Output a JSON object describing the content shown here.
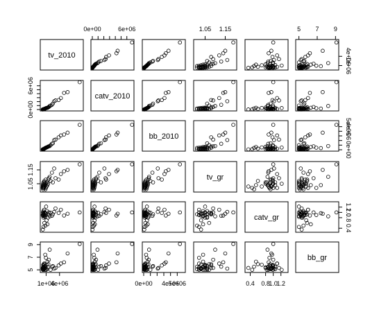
{
  "chart_data": {
    "type": "scatter",
    "variables": [
      {
        "name": "tv_2010",
        "range": [
          0,
          9000000
        ],
        "ticks": [
          {
            "value": 1000000,
            "label": "1e+06"
          },
          {
            "value": 4000000,
            "label": "4e+06"
          }
        ],
        "minor_ticks": []
      },
      {
        "name": "catv_2010",
        "range": [
          0,
          7000000
        ],
        "ticks": [
          {
            "value": 0,
            "label": "0e+00"
          },
          {
            "value": 6000000,
            "label": "6e+06"
          }
        ],
        "minor_ticks": [
          1000000,
          2000000,
          3000000,
          4000000,
          5000000
        ]
      },
      {
        "name": "bb_2010",
        "range": [
          0,
          6000000
        ],
        "ticks": [
          {
            "value": 0,
            "label": "0e+00"
          },
          {
            "value": 4000000,
            "label": "4e+06"
          },
          {
            "value": 5000000,
            "label": "5e+06"
          }
        ],
        "minor_ticks": [
          1000000,
          2000000,
          3000000
        ]
      },
      {
        "name": "tv_gr",
        "range": [
          1.0,
          1.2
        ],
        "ticks": [
          {
            "value": 1.05,
            "label": "1.05"
          },
          {
            "value": 1.15,
            "label": "1.15"
          }
        ],
        "minor_ticks": []
      },
      {
        "name": "catv_gr",
        "range": [
          0.3,
          1.35
        ],
        "ticks": [
          {
            "value": 0.4,
            "label": "0.4"
          },
          {
            "value": 0.8,
            "label": "0.8"
          },
          {
            "value": 1.0,
            "label": "1.0"
          },
          {
            "value": 1.2,
            "label": "1.2"
          }
        ],
        "minor_ticks": []
      },
      {
        "name": "bb_gr",
        "range": [
          4.8,
          9.2
        ],
        "ticks": [
          {
            "value": 5,
            "label": "5"
          },
          {
            "value": 7,
            "label": "7"
          },
          {
            "value": 9,
            "label": "9"
          }
        ],
        "minor_ticks": []
      }
    ],
    "observations": [
      [
        8500000,
        6900000,
        5400000,
        1.19,
        1.0,
        9.1
      ],
      [
        5800000,
        4400000,
        3700000,
        1.15,
        0.95,
        7.6
      ],
      [
        5000000,
        4200000,
        3300000,
        1.14,
        0.88,
        6.2
      ],
      [
        4300000,
        2900000,
        3100000,
        1.12,
        1.1,
        6.0
      ],
      [
        3800000,
        2400000,
        2700000,
        1.08,
        0.98,
        5.7
      ],
      [
        3100000,
        2300000,
        2200000,
        1.09,
        1.15,
        5.3
      ],
      [
        2800000,
        2100000,
        2100000,
        1.16,
        1.02,
        5.2
      ],
      [
        2500000,
        1500000,
        1400000,
        1.06,
        0.93,
        5.6
      ],
      [
        2300000,
        1200000,
        1300000,
        1.13,
        0.87,
        5.5
      ],
      [
        2000000,
        1000000,
        1000000,
        1.07,
        0.99,
        5.0
      ],
      [
        1800000,
        900000,
        800000,
        1.1,
        0.85,
        8.2
      ],
      [
        1600000,
        650000,
        750000,
        1.09,
        1.0,
        6.6
      ],
      [
        1500000,
        600000,
        700000,
        1.08,
        0.92,
        5.9
      ],
      [
        1400000,
        500000,
        650000,
        1.05,
        0.8,
        5.4
      ],
      [
        1300000,
        450000,
        600000,
        1.04,
        0.55,
        6.3
      ],
      [
        1200000,
        420000,
        550000,
        1.06,
        1.05,
        5.1
      ],
      [
        1100000,
        400000,
        500000,
        1.03,
        0.7,
        5.8
      ],
      [
        1000000,
        380000,
        480000,
        1.05,
        1.22,
        5.0
      ],
      [
        950000,
        350000,
        450000,
        1.02,
        0.9,
        6.9
      ],
      [
        900000,
        300000,
        420000,
        1.08,
        0.95,
        5.3
      ],
      [
        850000,
        280000,
        400000,
        1.01,
        0.5,
        5.5
      ],
      [
        800000,
        250000,
        360000,
        1.04,
        0.97,
        7.4
      ],
      [
        750000,
        230000,
        320000,
        1.06,
        0.83,
        5.0
      ],
      [
        700000,
        200000,
        300000,
        1.05,
        1.0,
        5.6
      ],
      [
        650000,
        180000,
        280000,
        1.03,
        0.88,
        5.2
      ],
      [
        600000,
        160000,
        250000,
        1.07,
        0.6,
        5.9
      ],
      [
        560000,
        140000,
        220000,
        1.02,
        1.1,
        6.0
      ],
      [
        520000,
        120000,
        200000,
        1.04,
        0.85,
        5.4
      ],
      [
        480000,
        110000,
        180000,
        1.03,
        0.94,
        5.1
      ],
      [
        450000,
        100000,
        160000,
        1.05,
        0.9,
        5.7
      ],
      [
        420000,
        90000,
        150000,
        1.06,
        0.8,
        5.3
      ],
      [
        400000,
        80000,
        140000,
        1.02,
        0.45,
        5.0
      ],
      [
        380000,
        70000,
        130000,
        1.04,
        1.05,
        5.5
      ],
      [
        360000,
        60000,
        120000,
        1.03,
        0.96,
        5.2
      ],
      [
        340000,
        50000,
        110000,
        1.05,
        0.99,
        5.8
      ],
      [
        320000,
        45000,
        100000,
        1.01,
        0.93,
        5.1
      ],
      [
        300000,
        40000,
        95000,
        1.02,
        1.0,
        5.4
      ],
      [
        280000,
        35000,
        90000,
        1.04,
        0.87,
        5.0
      ],
      [
        260000,
        30000,
        85000,
        1.03,
        0.35,
        5.3
      ],
      [
        240000,
        25000,
        80000,
        1.02,
        0.9,
        5.2
      ]
    ]
  }
}
